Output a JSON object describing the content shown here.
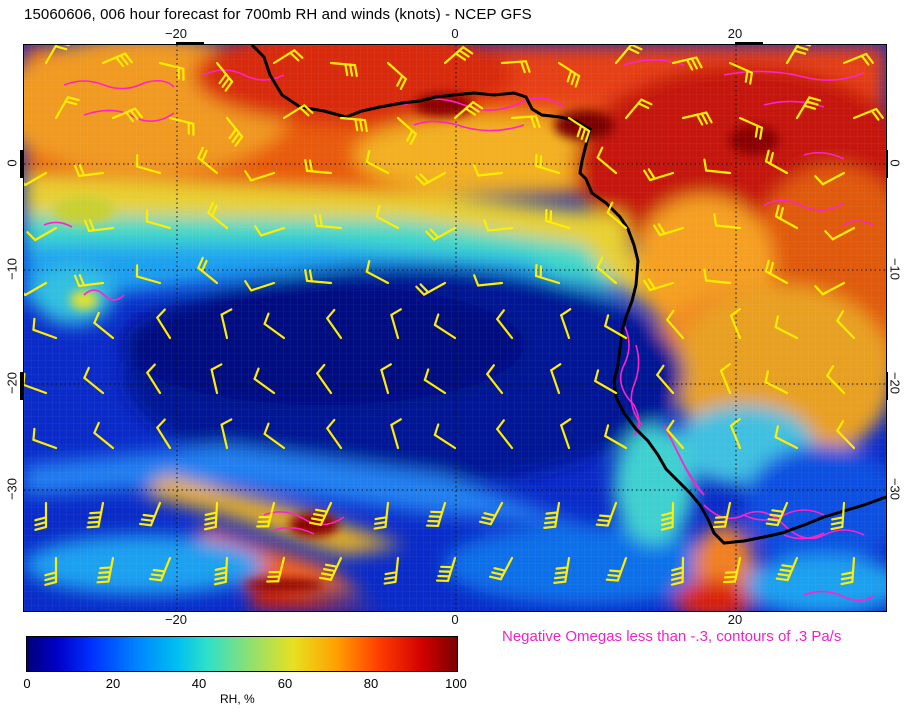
{
  "title": "15060606, 006 hour forecast for 700mb RH and winds (knots) - NCEP GFS",
  "axes": {
    "top_labels": [
      "−20",
      "0",
      "20"
    ],
    "bottom_labels": [
      "−20",
      "0",
      "20"
    ],
    "left_labels": [
      "0",
      "−10",
      "−20",
      "−30"
    ],
    "right_labels": [
      "0",
      "−10",
      "−20",
      "−30"
    ],
    "lon_range": [
      -30,
      31
    ],
    "lat_range": [
      -40,
      5
    ]
  },
  "omega_note": "Negative Omegas less than -.3, contours of .3 Pa/s",
  "colorbar": {
    "label": "RH, %",
    "ticks": [
      "0",
      "20",
      "40",
      "60",
      "80",
      "100"
    ],
    "range": [
      0,
      100
    ]
  },
  "colors": {
    "coastline": "#000000",
    "wind_barbs": "#ffee00",
    "omega_contours": "#ff22cc",
    "grid": "#222222"
  }
}
